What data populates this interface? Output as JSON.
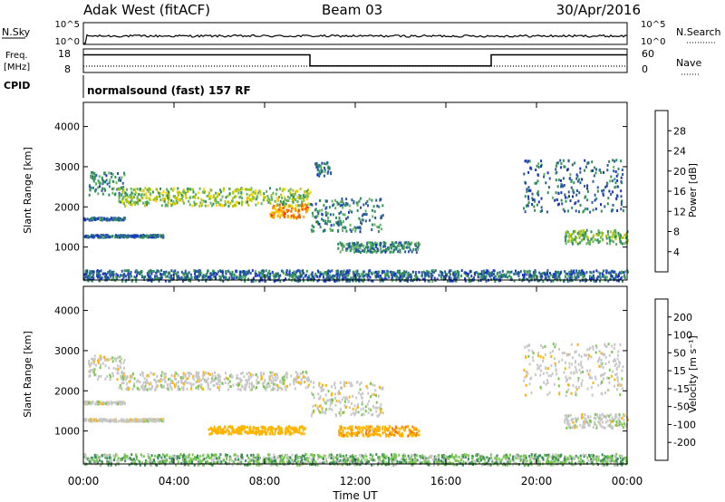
{
  "header": {
    "station": "Adak West (fitACF)",
    "beam": "Beam 03",
    "date": "30/Apr/2016"
  },
  "sky_panel": {
    "left_label": "N.Sky",
    "right_label": "N.Search",
    "left_ticks": [
      "10^5",
      "10^0"
    ],
    "right_ticks": [
      "10^5",
      "10^0"
    ]
  },
  "freq_panel": {
    "left_label_line1": "Freq.",
    "left_label_line2": "[MHz]",
    "left_ticks": [
      "18",
      "8"
    ],
    "right_ticks": [
      "60",
      "0"
    ],
    "right_label": "Nave",
    "freq_steps": [
      {
        "from_hour": 0,
        "to_hour": 10,
        "level": 0.75
      },
      {
        "from_hour": 10,
        "to_hour": 18,
        "level": 0.28
      },
      {
        "from_hour": 18,
        "to_hour": 24,
        "level": 0.75
      }
    ]
  },
  "cpid": {
    "label": "CPID",
    "text": "normalsound (fast) 157 RF"
  },
  "power_colorbar": {
    "label": "Power [dB]",
    "ticks": [
      "28",
      "24",
      "20",
      "16",
      "12",
      "8",
      "4"
    ],
    "colors": [
      "#ff0000",
      "#ff5a00",
      "#ffa000",
      "#ffd200",
      "#b4c800",
      "#64b464",
      "#2f8f5a",
      "#2a5aa0",
      "#1a32c8",
      "#0000ff"
    ]
  },
  "velocity_colorbar": {
    "label": "Velocity [m s⁻¹]",
    "ticks": [
      "200",
      "100",
      "50",
      "15",
      "-15",
      "-50",
      "-100",
      "-200"
    ],
    "colors": [
      "#1e3cc8",
      "#2e6496",
      "#3c8c5a",
      "#78c850",
      "#c8c8c8",
      "#ffb400",
      "#ff7800",
      "#ff0000"
    ]
  },
  "x_ticks": [
    "00:00",
    "04:00",
    "08:00",
    "12:00",
    "16:00",
    "20:00",
    "00:00"
  ],
  "x_label": "Time UT",
  "y_label": "Slant Range [km]",
  "y_ticks": [
    "4000",
    "3000",
    "2000",
    "1000"
  ],
  "chart_data": [
    {
      "type": "heatmap",
      "title": "Power",
      "xlabel": "Time UT",
      "ylabel": "Slant Range [km]",
      "xlim": [
        0,
        24
      ],
      "ylim": [
        180,
        4600
      ],
      "colorbar": "Power [dB]",
      "colorbar_range": [
        0,
        32
      ],
      "bands": [
        {
          "t": [
            0,
            1.8
          ],
          "range": [
            1700,
            1760
          ],
          "value": 8
        },
        {
          "t": [
            0,
            3.5
          ],
          "range": [
            1270,
            1330
          ],
          "value": 8
        },
        {
          "t": [
            0.2,
            1.8
          ],
          "range": [
            2300,
            2900
          ],
          "value": 10
        },
        {
          "t": [
            1.5,
            10
          ],
          "range": [
            2050,
            2500
          ],
          "value": 16
        },
        {
          "t": [
            8.2,
            9.9
          ],
          "range": [
            1750,
            2100
          ],
          "value": 26
        },
        {
          "t": [
            10,
            13.2
          ],
          "range": [
            1400,
            2250
          ],
          "value": 10
        },
        {
          "t": [
            10.2,
            10.9
          ],
          "range": [
            2800,
            3150
          ],
          "value": 8
        },
        {
          "t": [
            11.2,
            14.8
          ],
          "range": [
            900,
            1150
          ],
          "value": 10
        },
        {
          "t": [
            19.4,
            23.8
          ],
          "range": [
            1900,
            3200
          ],
          "value": 8
        },
        {
          "t": [
            21.2,
            24
          ],
          "range": [
            1100,
            1450
          ],
          "value": 14
        },
        {
          "t": [
            0,
            24
          ],
          "range": [
            180,
            450
          ],
          "value": 8
        }
      ]
    },
    {
      "type": "heatmap",
      "title": "Velocity",
      "xlabel": "Time UT",
      "ylabel": "Slant Range [km]",
      "xlim": [
        0,
        24
      ],
      "ylim": [
        180,
        4600
      ],
      "colorbar": "Velocity [m s⁻¹]",
      "colorbar_range": [
        -250,
        250
      ],
      "bands": [
        {
          "t": [
            0,
            1.8
          ],
          "range": [
            1700,
            1760
          ],
          "value": 0
        },
        {
          "t": [
            0,
            3.5
          ],
          "range": [
            1270,
            1330
          ],
          "value": 0
        },
        {
          "t": [
            0.2,
            1.8
          ],
          "range": [
            2300,
            2900
          ],
          "value": 0
        },
        {
          "t": [
            1.5,
            10
          ],
          "range": [
            2050,
            2500
          ],
          "value": 0
        },
        {
          "t": [
            10,
            13.2
          ],
          "range": [
            1400,
            2250
          ],
          "value": 0
        },
        {
          "t": [
            11.2,
            14.8
          ],
          "range": [
            900,
            1150
          ],
          "value": -50
        },
        {
          "t": [
            5.5,
            9.8
          ],
          "range": [
            950,
            1150
          ],
          "value": -40
        },
        {
          "t": [
            19.4,
            23.8
          ],
          "range": [
            1900,
            3200
          ],
          "value": 0
        },
        {
          "t": [
            21.2,
            24
          ],
          "range": [
            1100,
            1450
          ],
          "value": 0
        },
        {
          "t": [
            0,
            24
          ],
          "range": [
            180,
            450
          ],
          "value": 25
        }
      ]
    }
  ]
}
